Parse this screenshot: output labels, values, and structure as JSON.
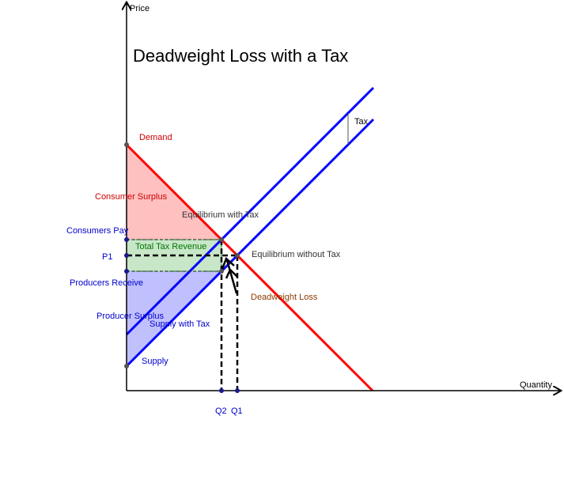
{
  "diagram": {
    "title": "Deadweight Loss with a Tax",
    "axes": {
      "y_label": "Price",
      "x_label": "Quantity"
    },
    "curves": {
      "demand": "Demand",
      "supply": "Supply",
      "supply_with_tax": "Supply with Tax"
    },
    "regions": {
      "consumer_surplus": "Consumer Surplus",
      "producer_surplus": "Producer Surplus",
      "tax_revenue": "Total Tax Revenue",
      "deadweight_loss": "Deadweight Loss"
    },
    "points": {
      "eq_with_tax": "Equilibrium with Tax",
      "eq_without_tax": "Equilibrium without Tax"
    },
    "price_labels": {
      "consumers_pay": "Consumers Pay",
      "p1": "P1",
      "producers_receive": "Producers Receive"
    },
    "quantity_labels": {
      "q2": "Q2",
      "q1": "Q1"
    },
    "tax_label": "Tax",
    "colors": {
      "demand": "#ff0000",
      "supply": "#0000ff",
      "consumer_surplus_fill": "#ffc0c0",
      "producer_surplus_fill": "#c0c0ff",
      "tax_revenue_fill": "#c8e6c8",
      "tax_revenue_text": "#007700",
      "deadweight_text": "#8b3a00",
      "point_text": "#333333"
    }
  }
}
